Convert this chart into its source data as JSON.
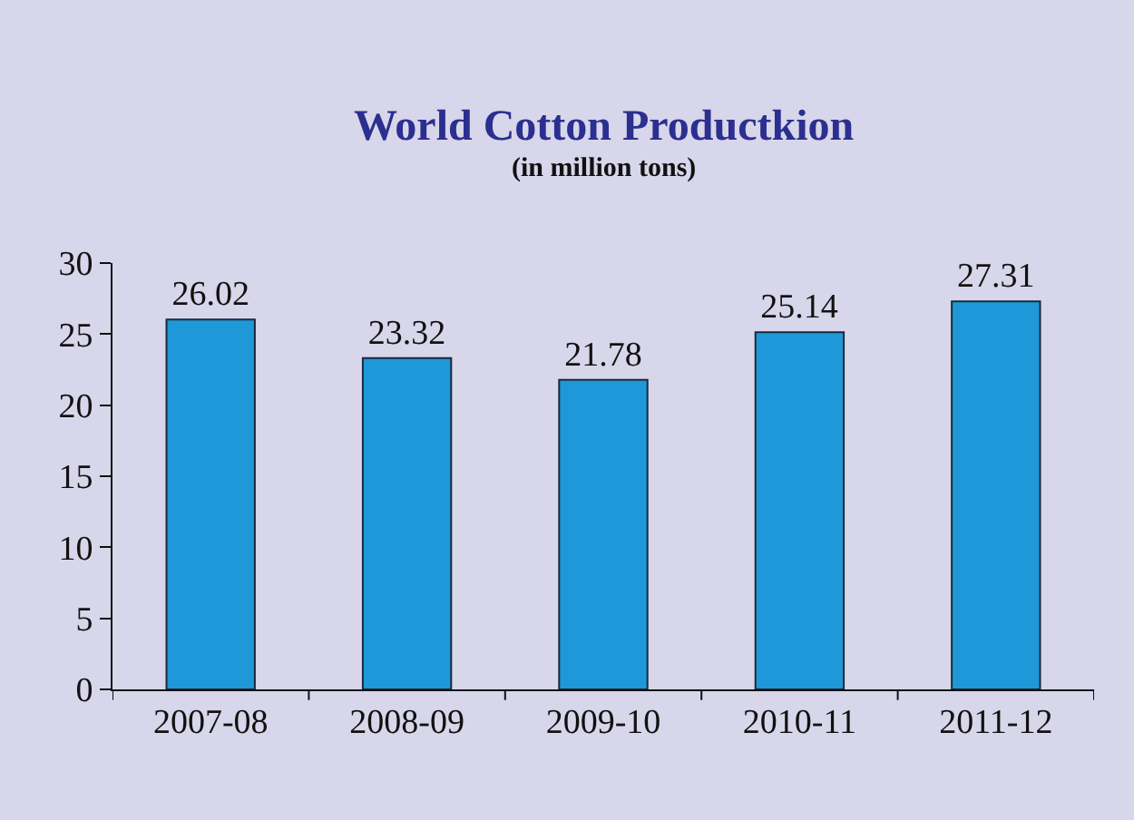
{
  "chart_data": {
    "type": "bar",
    "title": "World Cotton Productkion",
    "subtitle": "(in million tons)",
    "categories": [
      "2007-08",
      "2008-09",
      "2009-10",
      "2010-11",
      "2011-12"
    ],
    "values": [
      26.02,
      23.32,
      21.78,
      25.14,
      27.31
    ],
    "color": "#1e98d8",
    "ylim": [
      0,
      30
    ],
    "yticks": [
      0,
      5,
      10,
      15,
      20,
      25,
      30
    ],
    "data_labels": true
  }
}
